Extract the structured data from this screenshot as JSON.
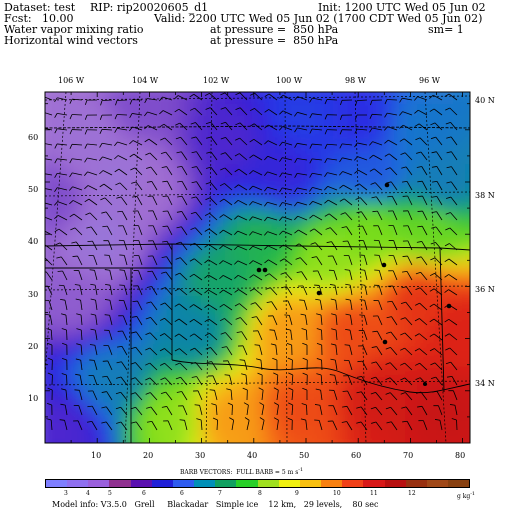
{
  "header": {
    "dataset": "Dataset: test",
    "rip": "RIP: rip20020605_d1",
    "init": "Init: 1200 UTC Wed 05 Jun 02",
    "fcst": "Fcst:   10.00",
    "valid": "Valid: 2200 UTC Wed 05 Jun 02 (1700 CDT Wed 05 Jun 02)",
    "field1_name": "Water vapor mixing ratio",
    "field1_level": "at pressure =  850 hPa",
    "sm": "sm= 1",
    "field2_name": "Horizontal wind vectors",
    "field2_level": "at pressure =  850 hPa"
  },
  "map": {
    "lon_labels": [
      "106 W",
      "104 W",
      "102 W",
      "100 W",
      "98 W",
      "96 W"
    ],
    "lat_labels": [
      "40 N",
      "38 N",
      "36 N",
      "34 N"
    ],
    "y_ticks": [
      "60",
      "50",
      "40",
      "30",
      "20",
      "10"
    ],
    "x_ticks": [
      "10",
      "20",
      "30",
      "40",
      "50",
      "60",
      "70",
      "80"
    ]
  },
  "barbs": {
    "title": "BARB VECTORS:  FULL BARB = 5 m s",
    "exp": "-1"
  },
  "colorbar": {
    "labels": [
      "3",
      "4",
      "5",
      "6",
      "6",
      "7",
      "8",
      "9",
      "10",
      "11",
      "12"
    ],
    "units": "g kg",
    "units_exp": "-1",
    "colors": [
      "#7f7fff",
      "#8f70f0",
      "#9a60dc",
      "#903090",
      "#5a10b0",
      "#2020d8",
      "#2e5cf0",
      "#0090b8",
      "#10a060",
      "#28d028",
      "#a0e020",
      "#f0f010",
      "#f8c010",
      "#f88010",
      "#f04018",
      "#d81818",
      "#b81010",
      "#983010",
      "#a04818",
      "#884010"
    ]
  },
  "footer": "Model info: V3.5.0   Grell     Blackadar   Simple ice    12 km,   29 levels,    80 sec"
}
